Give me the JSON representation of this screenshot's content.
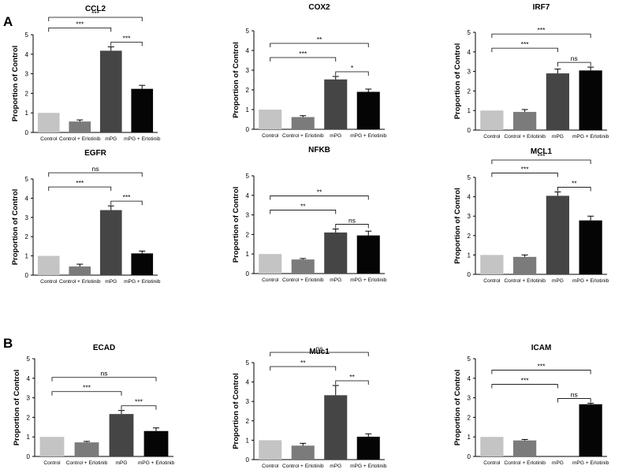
{
  "panel_labels": [
    "A",
    "B"
  ],
  "colors": {
    "bars": [
      "#c4c4c4",
      "#7b7b7b",
      "#454545",
      "#050505"
    ],
    "axis": "#000000"
  },
  "chart_data": [
    {
      "type": "bar",
      "title": "CCL2",
      "ylabel": "Proportion of Control",
      "ylim": [
        0,
        5
      ],
      "yticks": [
        0,
        1,
        2,
        3,
        4,
        5
      ],
      "categories": [
        "Control",
        "Control + Erlotinib",
        "mPG",
        "mPG + Erlotinib"
      ],
      "values": [
        1.0,
        0.56,
        4.18,
        2.23
      ],
      "errors": [
        0,
        0.08,
        0.2,
        0.18
      ],
      "comparisons": [
        {
          "from": 2,
          "to": 3,
          "label": "***",
          "level": 0
        },
        {
          "from": 0,
          "to": 2,
          "label": "***",
          "level": 1
        },
        {
          "from": 0,
          "to": 3,
          "label": "***",
          "level": 2
        }
      ]
    },
    {
      "type": "bar",
      "title": "COX2",
      "ylabel": "Proportion of Control",
      "ylim": [
        0,
        5
      ],
      "yticks": [
        0,
        1,
        2,
        3,
        4,
        5
      ],
      "categories": [
        "Control",
        "Control + Erlotinib",
        "mPG",
        "mPG + Erlotinib"
      ],
      "values": [
        1.0,
        0.62,
        2.53,
        1.9
      ],
      "errors": [
        0,
        0.07,
        0.15,
        0.14
      ],
      "comparisons": [
        {
          "from": 2,
          "to": 3,
          "label": "*",
          "level": 0
        },
        {
          "from": 0,
          "to": 2,
          "label": "***",
          "level": 1
        },
        {
          "from": 0,
          "to": 3,
          "label": "**",
          "level": 2
        }
      ]
    },
    {
      "type": "bar",
      "title": "IRF7",
      "ylabel": "Proportion of Control",
      "ylim": [
        0,
        5
      ],
      "yticks": [
        0,
        1,
        2,
        3,
        4,
        5
      ],
      "categories": [
        "Control",
        "Control + Erlotinib",
        "mPG",
        "mPG + Erlotinib"
      ],
      "values": [
        1.0,
        0.93,
        2.9,
        3.05
      ],
      "errors": [
        0,
        0.12,
        0.22,
        0.17
      ],
      "comparisons": [
        {
          "from": 2,
          "to": 3,
          "label": "ns",
          "level": 0
        },
        {
          "from": 0,
          "to": 2,
          "label": "***",
          "level": 1
        },
        {
          "from": 0,
          "to": 3,
          "label": "***",
          "level": 2
        }
      ]
    },
    {
      "type": "bar",
      "title": "EGFR",
      "ylabel": "Proportion of Control",
      "ylim": [
        0,
        5
      ],
      "yticks": [
        0,
        1,
        2,
        3,
        4,
        5
      ],
      "categories": [
        "Control",
        "Control + Erlotinib",
        "mPG",
        "mPG + Erlotinib"
      ],
      "values": [
        1.0,
        0.45,
        3.38,
        1.13
      ],
      "errors": [
        0,
        0.12,
        0.22,
        0.12
      ],
      "comparisons": [
        {
          "from": 2,
          "to": 3,
          "label": "***",
          "level": 0
        },
        {
          "from": 0,
          "to": 2,
          "label": "***",
          "level": 1
        },
        {
          "from": 0,
          "to": 3,
          "label": "ns",
          "level": 2
        }
      ]
    },
    {
      "type": "bar",
      "title": "NFKB",
      "ylabel": "Proportion of Control",
      "ylim": [
        0,
        5
      ],
      "yticks": [
        0,
        1,
        2,
        3,
        4,
        5
      ],
      "categories": [
        "Control",
        "Control + Erlotinib",
        "mPG",
        "mPG + Erlotinib"
      ],
      "values": [
        1.0,
        0.72,
        2.1,
        1.95
      ],
      "errors": [
        0,
        0.05,
        0.18,
        0.22
      ],
      "comparisons": [
        {
          "from": 2,
          "to": 3,
          "label": "ns",
          "level": 0
        },
        {
          "from": 0,
          "to": 2,
          "label": "**",
          "level": 1
        },
        {
          "from": 0,
          "to": 3,
          "label": "**",
          "level": 2
        }
      ]
    },
    {
      "type": "bar",
      "title": "MCL1",
      "ylabel": "Proportion of Control",
      "ylim": [
        0,
        5
      ],
      "yticks": [
        0,
        1,
        2,
        3,
        4,
        5
      ],
      "categories": [
        "Control",
        "Control + Erlotinib",
        "mPG",
        "mPG + Erlotinib"
      ],
      "values": [
        1.0,
        0.9,
        4.05,
        2.78
      ],
      "errors": [
        0,
        0.1,
        0.2,
        0.22
      ],
      "comparisons": [
        {
          "from": 2,
          "to": 3,
          "label": "**",
          "level": 0
        },
        {
          "from": 0,
          "to": 2,
          "label": "***",
          "level": 1
        },
        {
          "from": 0,
          "to": 3,
          "label": "***",
          "level": 2
        }
      ]
    },
    {
      "type": "bar",
      "title": "ECAD",
      "ylabel": "Proportion of Control",
      "ylim": [
        0,
        5
      ],
      "yticks": [
        0,
        1,
        2,
        3,
        4,
        5
      ],
      "categories": [
        "Control",
        "Control + Erlotinib",
        "mPG",
        "mPG + Erlotinib"
      ],
      "values": [
        1.0,
        0.72,
        2.17,
        1.3
      ],
      "errors": [
        0,
        0.05,
        0.18,
        0.16
      ],
      "comparisons": [
        {
          "from": 2,
          "to": 3,
          "label": "***",
          "level": 0
        },
        {
          "from": 0,
          "to": 2,
          "label": "***",
          "level": 1
        },
        {
          "from": 0,
          "to": 3,
          "label": "ns",
          "level": 2
        }
      ]
    },
    {
      "type": "bar",
      "title": "Muc1",
      "ylabel": "Proportion of Control",
      "ylim": [
        0,
        5
      ],
      "yticks": [
        0,
        1,
        2,
        3,
        4,
        5
      ],
      "categories": [
        "Control",
        "Control + Erlotinib",
        "mPG",
        "mPG + Erlotinib"
      ],
      "values": [
        1.0,
        0.72,
        3.32,
        1.18
      ],
      "errors": [
        0,
        0.12,
        0.5,
        0.15
      ],
      "comparisons": [
        {
          "from": 2,
          "to": 3,
          "label": "**",
          "level": 0
        },
        {
          "from": 0,
          "to": 2,
          "label": "**",
          "level": 1
        },
        {
          "from": 0,
          "to": 3,
          "label": "ns",
          "level": 2
        }
      ]
    },
    {
      "type": "bar",
      "title": "ICAM",
      "ylabel": "Proportion of Control",
      "ylim": [
        0,
        5
      ],
      "yticks": [
        0,
        1,
        2,
        3,
        4,
        5
      ],
      "categories": [
        "Control",
        "Control + Erlotinib",
        "mPG",
        "mPG + Erlotinib"
      ],
      "values": [
        1.0,
        0.82,
        0,
        2.67
      ],
      "errors": [
        0,
        0.05,
        0,
        0.05
      ],
      "comparisons": [
        {
          "from": 2,
          "to": 3,
          "label": "ns",
          "level": 0
        },
        {
          "from": 0,
          "to": 2,
          "label": "***",
          "level": 1
        },
        {
          "from": 0,
          "to": 3,
          "label": "***",
          "level": 2
        }
      ]
    }
  ]
}
